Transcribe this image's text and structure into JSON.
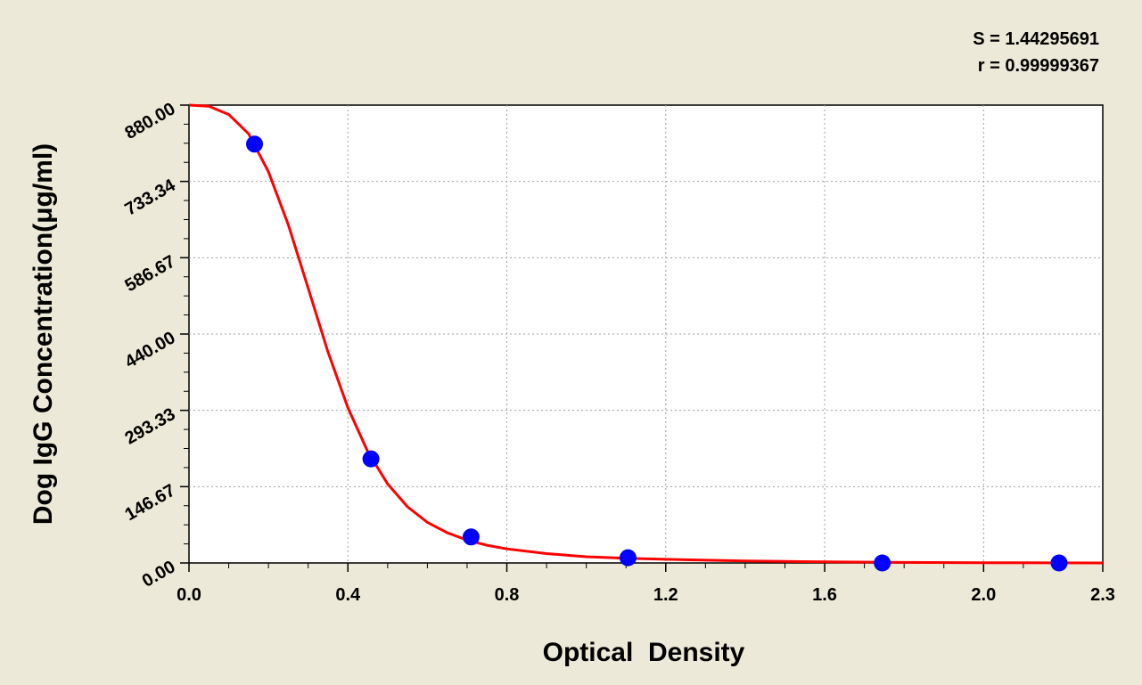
{
  "chart_data": {
    "type": "scatter",
    "title": "",
    "xlabel": "Optical  Density",
    "ylabel": "Dog IgG Concentration(μg/ml)",
    "xlim": [
      0,
      2.3
    ],
    "ylim": [
      0,
      880
    ],
    "x_ticks": [
      "0.0",
      "0.4",
      "0.8",
      "1.2",
      "1.6",
      "2.0",
      "2.3"
    ],
    "x_tick_values": [
      0,
      0.4,
      0.8,
      1.2,
      1.6,
      2.0,
      2.3
    ],
    "y_ticks": [
      "0.00",
      "146.67",
      "293.33",
      "440.00",
      "586.67",
      "733.34",
      "880.00"
    ],
    "y_tick_values": [
      0,
      146.67,
      293.33,
      440.0,
      586.67,
      733.34,
      880.0
    ],
    "grid": true,
    "points": [
      {
        "x": 0.165,
        "y": 805
      },
      {
        "x": 0.458,
        "y": 200
      },
      {
        "x": 0.71,
        "y": 50
      },
      {
        "x": 1.105,
        "y": 10
      },
      {
        "x": 1.745,
        "y": 0
      },
      {
        "x": 2.19,
        "y": 0
      }
    ],
    "fit_curve": [
      [
        0.0,
        880
      ],
      [
        0.05,
        878
      ],
      [
        0.1,
        862
      ],
      [
        0.15,
        825
      ],
      [
        0.2,
        752
      ],
      [
        0.25,
        650
      ],
      [
        0.3,
        528
      ],
      [
        0.35,
        405
      ],
      [
        0.4,
        298
      ],
      [
        0.45,
        214
      ],
      [
        0.5,
        152
      ],
      [
        0.55,
        108
      ],
      [
        0.6,
        78
      ],
      [
        0.65,
        58
      ],
      [
        0.7,
        44
      ],
      [
        0.75,
        34
      ],
      [
        0.8,
        27
      ],
      [
        0.9,
        18
      ],
      [
        1.0,
        12
      ],
      [
        1.1,
        9
      ],
      [
        1.2,
        7
      ],
      [
        1.4,
        4
      ],
      [
        1.6,
        2
      ],
      [
        1.8,
        1
      ],
      [
        2.0,
        0.5
      ],
      [
        2.3,
        0
      ]
    ],
    "stats": {
      "s_label": "S = 1.44295691",
      "r_label": "r = 0.99999367"
    },
    "colors": {
      "background": "#ece9d8",
      "plot_area": "#ffffff",
      "points": "#0000ff",
      "curve": "#ff0000",
      "grid": "#a0a0a0"
    }
  }
}
